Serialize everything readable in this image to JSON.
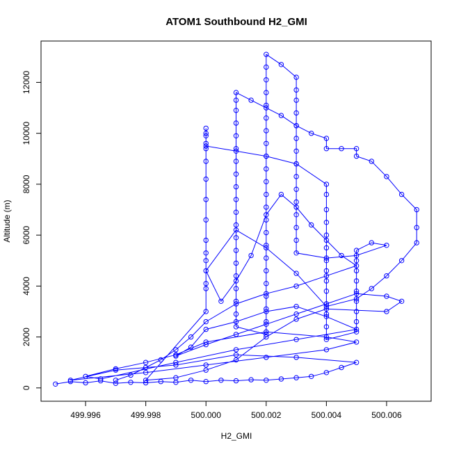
{
  "chart_data": {
    "type": "line",
    "title": "ATOM1 Southbound H2_GMI",
    "xlabel": "H2_GMI",
    "ylabel": "Altitude (m)",
    "xlim": [
      499.995,
      500.007
    ],
    "ylim": [
      0,
      13100
    ],
    "x_ticks": [
      499.996,
      499.998,
      500.0,
      500.002,
      500.004,
      500.006
    ],
    "x_tick_labels": [
      "499.996",
      "499.998",
      "500.000",
      "500.002",
      "500.004",
      "500.006"
    ],
    "y_ticks": [
      0,
      2000,
      4000,
      6000,
      8000,
      10000,
      12000
    ],
    "y_tick_labels": [
      "0",
      "2000",
      "4000",
      "6000",
      "8000",
      "10000",
      "12000"
    ],
    "series_color": "#0000ff",
    "series": [
      {
        "markers": "open-circle",
        "points": [
          [
            499.995,
            150
          ],
          [
            499.9955,
            250
          ],
          [
            499.996,
            200
          ],
          [
            499.9965,
            280
          ],
          [
            499.997,
            180
          ],
          [
            499.9975,
            220
          ],
          [
            499.998,
            200
          ],
          [
            499.9985,
            250
          ],
          [
            499.999,
            220
          ],
          [
            499.9995,
            300
          ],
          [
            500.0,
            250
          ],
          [
            500.0005,
            300
          ],
          [
            500.001,
            280
          ],
          [
            500.0015,
            320
          ],
          [
            500.002,
            300
          ],
          [
            500.0025,
            350
          ],
          [
            500.003,
            400
          ],
          [
            500.0035,
            450
          ],
          [
            500.004,
            600
          ],
          [
            500.0045,
            800
          ],
          [
            500.005,
            1000
          ],
          [
            500.003,
            1200
          ],
          [
            500.001,
            1300
          ],
          [
            499.999,
            900
          ],
          [
            499.997,
            700
          ],
          [
            499.9955,
            300
          ],
          [
            499.998,
            600
          ],
          [
            500.0,
            900
          ],
          [
            500.002,
            1200
          ],
          [
            500.004,
            1500
          ],
          [
            500.005,
            1800
          ],
          [
            500.004,
            2000
          ],
          [
            500.002,
            2200
          ],
          [
            500.0,
            1800
          ],
          [
            499.999,
            1300
          ],
          [
            499.998,
            1000
          ],
          [
            499.997,
            750
          ],
          [
            499.996,
            450
          ],
          [
            499.9965,
            350
          ],
          [
            499.999,
            1000
          ],
          [
            500.001,
            1500
          ],
          [
            500.003,
            1900
          ],
          [
            500.005,
            2300
          ],
          [
            500.004,
            2800
          ],
          [
            500.003,
            3200
          ],
          [
            500.002,
            3000
          ],
          [
            500.001,
            2600
          ],
          [
            500.0,
            2300
          ],
          [
            499.9995,
            1600
          ],
          [
            499.999,
            1250
          ],
          [
            500.0,
            1700
          ],
          [
            500.001,
            2100
          ],
          [
            500.002,
            2500
          ],
          [
            500.003,
            2900
          ],
          [
            500.004,
            3300
          ],
          [
            500.005,
            3700
          ],
          [
            500.006,
            3600
          ],
          [
            500.0065,
            3400
          ],
          [
            500.006,
            3000
          ],
          [
            500.004,
            3100
          ],
          [
            500.003,
            2700
          ],
          [
            500.002,
            2000
          ],
          [
            500.001,
            1100
          ],
          [
            500.0,
            700
          ],
          [
            499.999,
            400
          ],
          [
            499.998,
            300
          ],
          [
            500.0,
            3000
          ],
          [
            500.0,
            3900
          ],
          [
            500.0,
            4100
          ],
          [
            500.0,
            5000
          ],
          [
            500.0,
            5300
          ],
          [
            500.0,
            5800
          ],
          [
            500.0,
            6600
          ],
          [
            500.0,
            7400
          ],
          [
            500.0,
            8200
          ],
          [
            500.0,
            8900
          ],
          [
            500.0,
            9400
          ],
          [
            500.0,
            9600
          ],
          [
            500.0,
            9900
          ],
          [
            500.0,
            10200
          ],
          [
            500.0,
            10000
          ],
          [
            500.0,
            9500
          ],
          [
            500.001,
            9300
          ],
          [
            500.002,
            9100
          ],
          [
            500.003,
            8800
          ],
          [
            500.004,
            8000
          ],
          [
            500.004,
            7600
          ],
          [
            500.004,
            7000
          ],
          [
            500.004,
            6500
          ],
          [
            500.004,
            6000
          ],
          [
            500.004,
            5500
          ],
          [
            500.004,
            5000
          ],
          [
            500.004,
            4600
          ],
          [
            500.004,
            4200
          ],
          [
            500.004,
            3800
          ],
          [
            500.004,
            3300
          ],
          [
            500.004,
            2900
          ],
          [
            500.004,
            2400
          ],
          [
            500.004,
            1900
          ],
          [
            500.005,
            2200
          ],
          [
            500.005,
            2600
          ],
          [
            500.005,
            3000
          ],
          [
            500.005,
            3400
          ],
          [
            500.005,
            3800
          ],
          [
            500.005,
            4200
          ],
          [
            500.005,
            4600
          ],
          [
            500.005,
            5000
          ],
          [
            500.005,
            5400
          ],
          [
            500.0055,
            5700
          ],
          [
            500.006,
            5600
          ],
          [
            500.005,
            5200
          ],
          [
            500.004,
            5100
          ],
          [
            500.003,
            5300
          ],
          [
            500.003,
            5800
          ],
          [
            500.003,
            6300
          ],
          [
            500.003,
            6800
          ],
          [
            500.003,
            7300
          ],
          [
            500.003,
            7800
          ],
          [
            500.003,
            8300
          ],
          [
            500.003,
            8800
          ],
          [
            500.003,
            9300
          ],
          [
            500.003,
            9800
          ],
          [
            500.003,
            10300
          ],
          [
            500.003,
            10800
          ],
          [
            500.003,
            11300
          ],
          [
            500.003,
            11700
          ],
          [
            500.003,
            12200
          ],
          [
            500.0025,
            12700
          ],
          [
            500.002,
            13100
          ],
          [
            500.002,
            12600
          ],
          [
            500.002,
            12100
          ],
          [
            500.002,
            11600
          ],
          [
            500.002,
            11100
          ],
          [
            500.002,
            10600
          ],
          [
            500.002,
            10100
          ],
          [
            500.002,
            9600
          ],
          [
            500.002,
            9100
          ],
          [
            500.002,
            8600
          ],
          [
            500.002,
            8100
          ],
          [
            500.002,
            7600
          ],
          [
            500.002,
            7100
          ],
          [
            500.002,
            6600
          ],
          [
            500.002,
            6100
          ],
          [
            500.002,
            5600
          ],
          [
            500.002,
            5100
          ],
          [
            500.002,
            4600
          ],
          [
            500.002,
            4100
          ],
          [
            500.002,
            3600
          ],
          [
            500.002,
            3100
          ],
          [
            500.002,
            2600
          ],
          [
            500.002,
            2100
          ],
          [
            500.001,
            2400
          ],
          [
            500.001,
            2900
          ],
          [
            500.001,
            3400
          ],
          [
            500.001,
            3900
          ],
          [
            500.001,
            4400
          ],
          [
            500.001,
            4900
          ],
          [
            500.001,
            5400
          ],
          [
            500.001,
            5900
          ],
          [
            500.001,
            6400
          ],
          [
            500.001,
            6900
          ],
          [
            500.001,
            7400
          ],
          [
            500.001,
            7900
          ],
          [
            500.001,
            8400
          ],
          [
            500.001,
            8900
          ],
          [
            500.001,
            9400
          ],
          [
            500.001,
            9900
          ],
          [
            500.001,
            10400
          ],
          [
            500.001,
            10900
          ],
          [
            500.001,
            11300
          ],
          [
            500.001,
            11600
          ],
          [
            500.0015,
            11300
          ],
          [
            500.002,
            11000
          ],
          [
            500.0025,
            10700
          ],
          [
            500.003,
            10300
          ],
          [
            500.0035,
            10000
          ],
          [
            500.004,
            9800
          ],
          [
            500.004,
            9400
          ],
          [
            500.0045,
            9400
          ],
          [
            500.005,
            9400
          ],
          [
            500.005,
            9100
          ],
          [
            500.0055,
            8900
          ],
          [
            500.006,
            8300
          ],
          [
            500.0065,
            7600
          ],
          [
            500.007,
            7000
          ],
          [
            500.007,
            6300
          ],
          [
            500.007,
            5700
          ],
          [
            500.0065,
            5000
          ],
          [
            500.006,
            4400
          ],
          [
            500.0055,
            3900
          ],
          [
            500.005,
            3500
          ],
          [
            500.004,
            3200
          ],
          [
            500.003,
            4500
          ],
          [
            500.002,
            5500
          ],
          [
            500.001,
            6200
          ],
          [
            500.0,
            4600
          ],
          [
            500.0005,
            3400
          ],
          [
            500.001,
            4200
          ],
          [
            500.0015,
            5200
          ],
          [
            500.002,
            6800
          ],
          [
            500.0025,
            7600
          ],
          [
            500.003,
            7100
          ],
          [
            500.0035,
            6400
          ],
          [
            500.004,
            5800
          ],
          [
            500.0045,
            5200
          ],
          [
            500.005,
            4800
          ],
          [
            500.004,
            4400
          ],
          [
            500.003,
            4000
          ],
          [
            500.002,
            3700
          ],
          [
            500.001,
            3300
          ],
          [
            500.0,
            2600
          ],
          [
            499.9995,
            2000
          ],
          [
            499.999,
            1500
          ],
          [
            499.9985,
            1100
          ],
          [
            499.998,
            800
          ],
          [
            499.9975,
            500
          ],
          [
            499.997,
            300
          ]
        ]
      }
    ]
  }
}
